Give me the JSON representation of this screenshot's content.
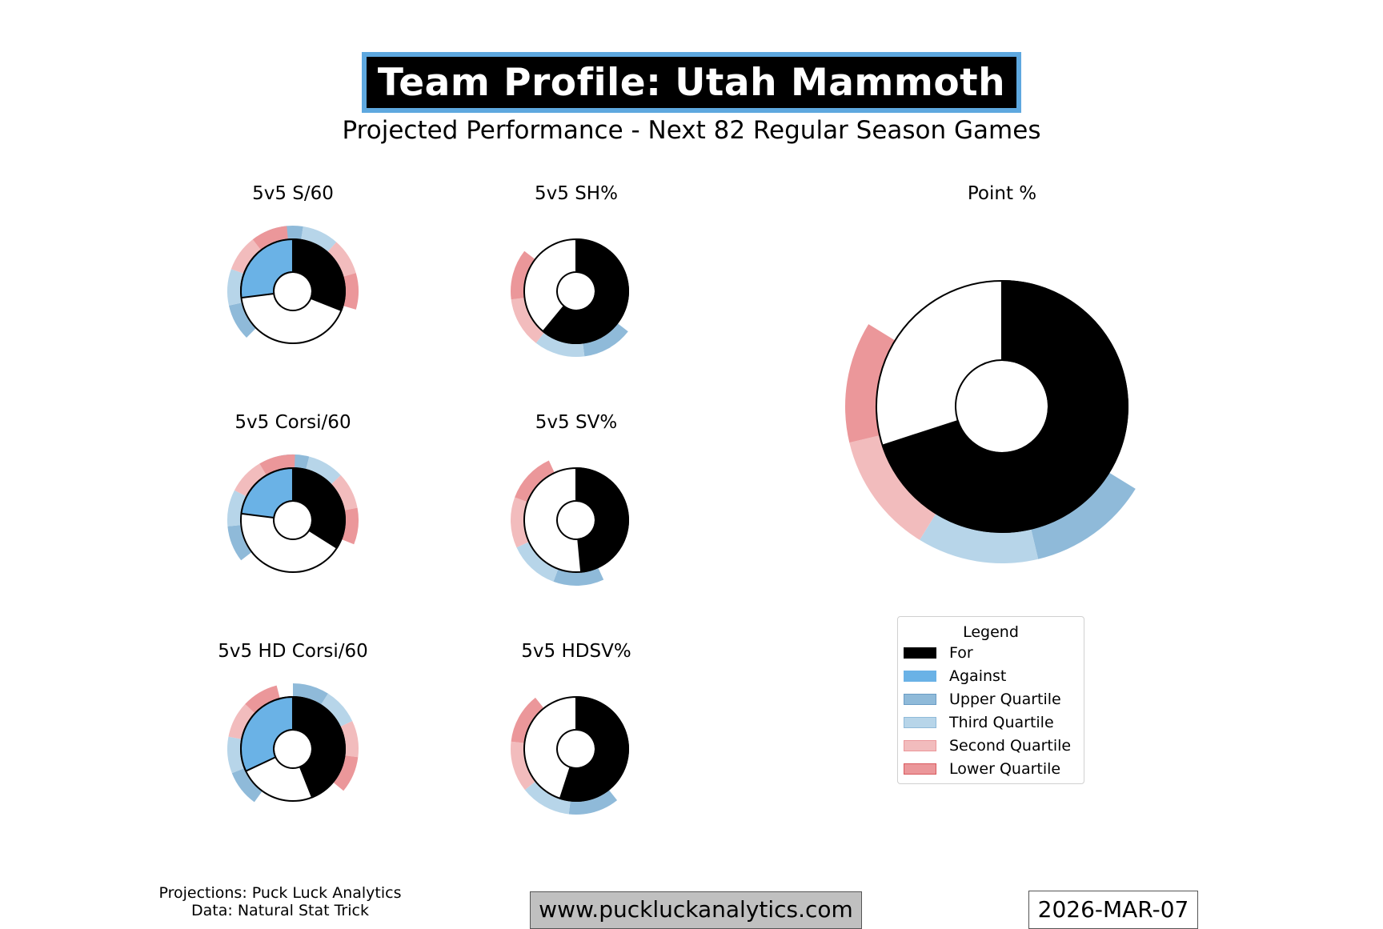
{
  "header": {
    "title": "Team Profile: Utah Mammoth",
    "subtitle": "Projected Performance - Next 82 Regular Season Games"
  },
  "colors": {
    "for": "#000000",
    "against": "#6ab2e6",
    "upper_quartile": "#8fbad9",
    "third_quartile": "#b7d5e9",
    "second_quartile": "#f2bcbd",
    "lower_quartile": "#eb979a",
    "title_border": "#5ea8df",
    "url_box": "#c0c0c0"
  },
  "chart_data": [
    {
      "type": "pie",
      "title": "5v5 S/60",
      "style": "for-against",
      "for_share": 0.31,
      "against_share": 0.27,
      "for_percentile": 0.34,
      "against_percentile": 0.62,
      "quartiles": [
        "upper_quartile",
        "third_quartile",
        "second_quartile",
        "lower_quartile"
      ]
    },
    {
      "type": "pie",
      "title": "5v5 SH%",
      "style": "single",
      "for_share": 0.61,
      "percentile": 0.55,
      "quartiles": [
        "upper_quartile",
        "third_quartile",
        "second_quartile",
        "lower_quartile"
      ]
    },
    {
      "type": "pie",
      "title": "5v5 Corsi/60",
      "style": "for-against",
      "for_share": 0.34,
      "against_share": 0.23,
      "for_percentile": 0.44,
      "against_percentile": 0.58,
      "quartiles": [
        "upper_quartile",
        "third_quartile",
        "second_quartile",
        "lower_quartile"
      ]
    },
    {
      "type": "pie",
      "title": "5v5 SV%",
      "style": "single",
      "for_share": 0.485,
      "percentile": 0.62,
      "quartiles": [
        "upper_quartile",
        "third_quartile",
        "second_quartile",
        "lower_quartile"
      ]
    },
    {
      "type": "pie",
      "title": "5v5 HD Corsi/60",
      "style": "for-against",
      "for_share": 0.44,
      "against_share": 0.32,
      "for_percentile": 0.2,
      "against_percentile": 0.61,
      "quartiles": [
        "upper_quartile",
        "third_quartile",
        "second_quartile",
        "lower_quartile"
      ]
    },
    {
      "type": "pie",
      "title": "5v5 HDSV%",
      "style": "single",
      "for_share": 0.55,
      "percentile": 0.59,
      "quartiles": [
        "upper_quartile",
        "third_quartile",
        "second_quartile",
        "lower_quartile"
      ]
    },
    {
      "type": "pie",
      "title": "Point %",
      "style": "single",
      "for_share": 0.7,
      "percentile": 0.69,
      "quartiles": [
        "upper_quartile",
        "third_quartile",
        "second_quartile",
        "lower_quartile"
      ]
    }
  ],
  "legend": {
    "title": "Legend",
    "placement": "right",
    "items": [
      {
        "label": "For",
        "color": "#000000",
        "edge": "#000000"
      },
      {
        "label": "Against",
        "color": "#6ab2e6",
        "edge": "#6ab2e6"
      },
      {
        "label": "Upper Quartile",
        "color": "#8fbad9",
        "edge": "#6a9cc5"
      },
      {
        "label": "Third Quartile",
        "color": "#b7d5e9",
        "edge": "#8fbad9"
      },
      {
        "label": "Second Quartile",
        "color": "#f2bcbd",
        "edge": "#eb979a"
      },
      {
        "label": "Lower Quartile",
        "color": "#eb979a",
        "edge": "#d9595e"
      }
    ]
  },
  "footer": {
    "credits_line1": "Projections: Puck Luck Analytics",
    "credits_line2": "Data: Natural Stat Trick",
    "url": "www.puckluckanalytics.com",
    "date": "2026-MAR-07"
  }
}
